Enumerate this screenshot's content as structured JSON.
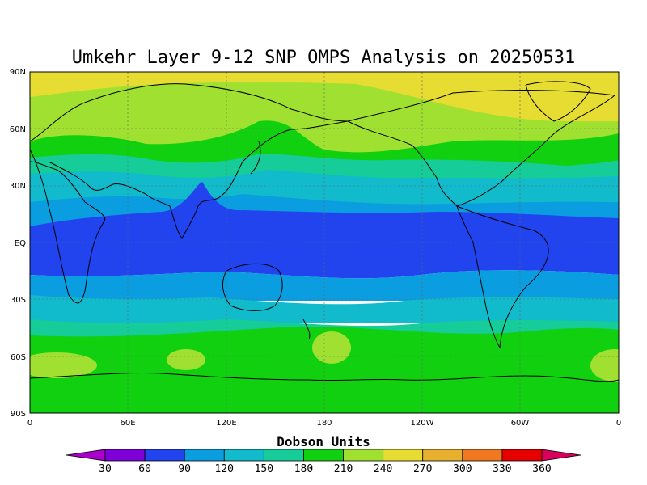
{
  "title": "Umkehr Layer 9-12 SNP OMPS Analysis on 20250531",
  "map": {
    "lat_ticks": [
      "90N",
      "60N",
      "30N",
      "EQ",
      "30S",
      "60S",
      "90S"
    ],
    "lon_ticks": [
      "0",
      "60E",
      "120E",
      "180",
      "120W",
      "60W",
      "0"
    ],
    "palette": [
      "#aa00cc",
      "#7d00d8",
      "#2244ee",
      "#0a9ee0",
      "#11bbcc",
      "#16cc99",
      "#10d010",
      "#a0e030",
      "#e6dc32",
      "#e6af2d",
      "#f07820",
      "#e60000",
      "#d8005a"
    ]
  },
  "colorbar": {
    "title": "Dobson Units",
    "labels": [
      "30",
      "60",
      "90",
      "120",
      "150",
      "180",
      "210",
      "240",
      "270",
      "300",
      "330",
      "360"
    ]
  }
}
